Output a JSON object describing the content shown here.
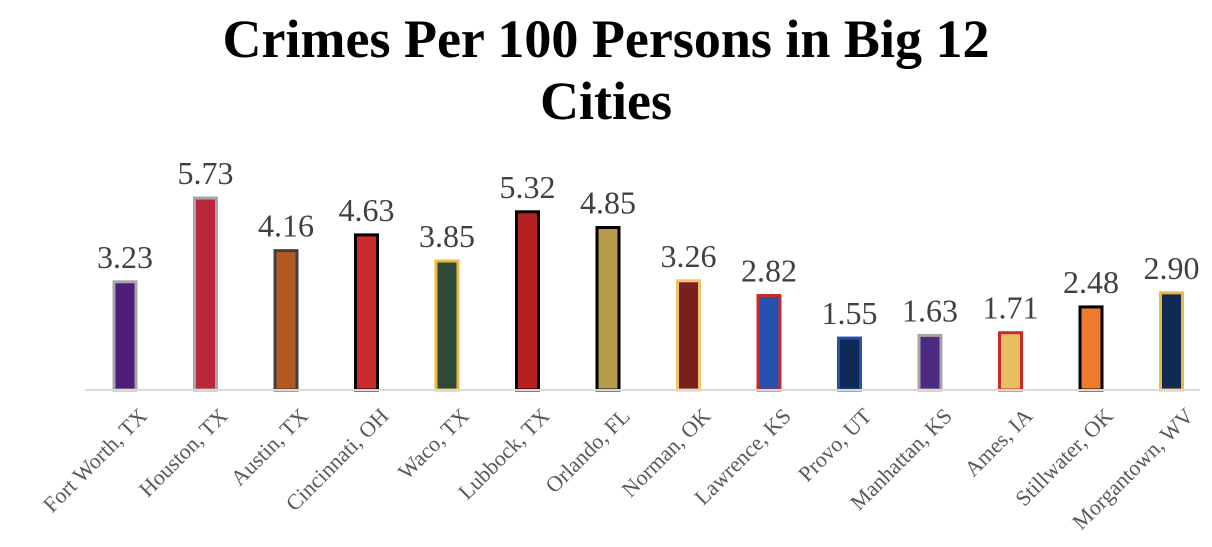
{
  "chart_data": {
    "type": "bar",
    "title_line1": "Crimes Per 100 Persons in Big 12",
    "title_line2": "Cities",
    "xlabel": "",
    "ylabel": "",
    "ylim": [
      0,
      6
    ],
    "grid": false,
    "legend": "none",
    "categories": [
      "Fort Worth, TX",
      "Houston, TX",
      "Austin, TX",
      "Cincinnati, OH",
      "Waco, TX",
      "Lubbock, TX",
      "Orlando, FL",
      "Norman, OK",
      "Lawrence, KS",
      "Provo, UT",
      "Manhattan, KS",
      "Ames, IA",
      "Stillwater, OK",
      "Morgantown, WV"
    ],
    "values": [
      3.23,
      5.73,
      4.16,
      4.63,
      3.85,
      5.32,
      4.85,
      3.26,
      2.82,
      1.55,
      1.63,
      1.71,
      2.48,
      2.9
    ],
    "labels": [
      "3.23",
      "5.73",
      "4.16",
      "4.63",
      "3.85",
      "5.32",
      "4.85",
      "3.26",
      "2.82",
      "1.55",
      "1.63",
      "1.71",
      "2.48",
      "2.90"
    ],
    "fill_colors": [
      "#4d1f7a",
      "#b8283a",
      "#b25a22",
      "#cc2a2a",
      "#2c4a36",
      "#b52120",
      "#b59b4a",
      "#7a1f1f",
      "#2550b0",
      "#0f2a55",
      "#4d2a82",
      "#e8c060",
      "#ee7b30",
      "#0f2a55"
    ],
    "border_colors": [
      "#a6a6a6",
      "#a6a6a6",
      "#404040",
      "#000000",
      "#f0b840",
      "#000000",
      "#000000",
      "#f2c46a",
      "#cc2a2a",
      "#2550b0",
      "#a6a6a6",
      "#cc2a2a",
      "#000000",
      "#f0b840"
    ],
    "axis_color": "#d9d9d9"
  }
}
